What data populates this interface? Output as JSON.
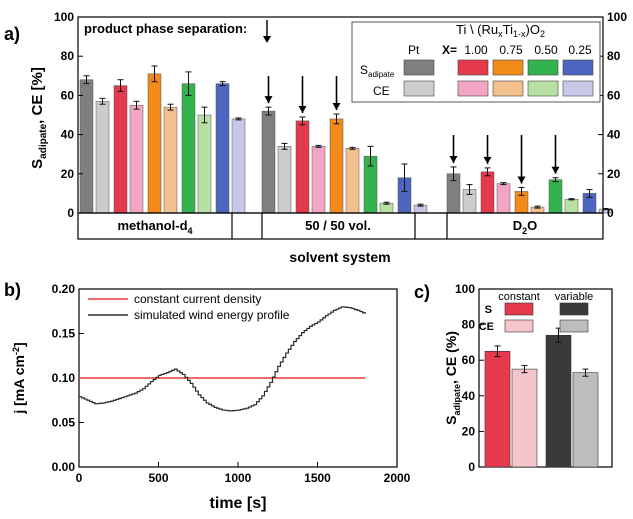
{
  "chart_data": [
    {
      "type": "bar",
      "panel_label": "a)",
      "ylabel_main": "S",
      "ylabel_sub": "adipate",
      "ylabel_rest": ", CE [%]",
      "ylim": [
        0,
        100
      ],
      "yticks": [
        "0",
        "20",
        "40",
        "60",
        "80",
        "100"
      ],
      "xlabel": "solvent system",
      "annotation": "product phase separation:",
      "groups": [
        {
          "label_main": "methanol-d",
          "label_sub": "4",
          "label_rest": ""
        },
        {
          "label_main": "50 / 50 vol.",
          "label_sub": "",
          "label_rest": ""
        },
        {
          "label_main": "D",
          "label_sub": "2",
          "label_rest": "O"
        }
      ],
      "legend": {
        "title_prefix": "Ti \\ (Ru",
        "title_x1": "x",
        "title_mid": "Ti",
        "title_x2": "1-x",
        "title_suffix": ")O",
        "title_two": "2",
        "header_pt": "Pt",
        "header_x": "X=",
        "x_values": [
          "1.00",
          "0.75",
          "0.50",
          "0.25"
        ],
        "row_s_main": "S",
        "row_s_sub": "adipate",
        "row_ce": "CE"
      },
      "series": [
        {
          "catalyst": "Pt",
          "S": [
            68,
            52,
            20
          ],
          "S_err": [
            2,
            2,
            3.5
          ],
          "CE": [
            57,
            34,
            12
          ],
          "CE_err": [
            1.5,
            1.5,
            2.5
          ]
        },
        {
          "catalyst": "1.00",
          "S": [
            65,
            47,
            21
          ],
          "S_err": [
            3,
            2,
            2
          ],
          "CE": [
            55,
            34,
            15
          ],
          "CE_err": [
            2,
            0.5,
            0.5
          ]
        },
        {
          "catalyst": "0.75",
          "S": [
            71,
            48,
            11
          ],
          "S_err": [
            4,
            2.5,
            2
          ],
          "CE": [
            54,
            33,
            3
          ],
          "CE_err": [
            1.5,
            0.5,
            0.5
          ]
        },
        {
          "catalyst": "0.50",
          "S": [
            66,
            29,
            17
          ],
          "S_err": [
            6,
            5,
            1
          ],
          "CE": [
            50,
            5,
            7
          ],
          "CE_err": [
            4,
            0.5,
            0.3
          ]
        },
        {
          "catalyst": "0.25",
          "S": [
            66,
            18,
            10
          ],
          "S_err": [
            1,
            7,
            2
          ],
          "CE": [
            48,
            4,
            2
          ],
          "CE_err": [
            0.5,
            0.5,
            0.3
          ]
        }
      ],
      "arrows": [
        [],
        [
          0,
          1,
          2
        ],
        [
          0,
          1,
          2,
          3
        ]
      ],
      "colors": {
        "S": [
          "#7f7f7f",
          "#e5394d",
          "#f28b1a",
          "#33b34d",
          "#4d66bf"
        ],
        "CE": [
          "#cccccc",
          "#f2a6c4",
          "#f2c08c",
          "#b8e0a3",
          "#c7c7e8"
        ]
      }
    },
    {
      "type": "line",
      "panel_label": "b)",
      "xlabel": "time [s]",
      "ylabel_main": "j [mA cm",
      "ylabel_sup": "-2",
      "ylabel_end": "]",
      "xlim": [
        0,
        2000
      ],
      "ylim": [
        0,
        0.2
      ],
      "xticks": [
        "0",
        "500",
        "1000",
        "1500",
        "2000"
      ],
      "yticks": [
        "0.00",
        "0.05",
        "0.10",
        "0.15",
        "0.20"
      ],
      "series": [
        {
          "name": "constant current density",
          "color": "#e83c3c",
          "x": [
            0,
            1800
          ],
          "y": [
            0.1,
            0.1
          ]
        },
        {
          "name": "simulated wind energy profile",
          "color": "#2b2b2b",
          "x": [
            0,
            50,
            100,
            150,
            200,
            250,
            300,
            350,
            400,
            450,
            500,
            550,
            600,
            650,
            700,
            750,
            800,
            850,
            900,
            950,
            1000,
            1050,
            1100,
            1150,
            1200,
            1250,
            1300,
            1350,
            1400,
            1450,
            1500,
            1550,
            1600,
            1650,
            1700,
            1750,
            1800
          ],
          "y": [
            0.079,
            0.075,
            0.071,
            0.072,
            0.074,
            0.077,
            0.08,
            0.083,
            0.088,
            0.096,
            0.103,
            0.106,
            0.11,
            0.104,
            0.094,
            0.081,
            0.072,
            0.067,
            0.064,
            0.063,
            0.064,
            0.066,
            0.07,
            0.08,
            0.095,
            0.113,
            0.128,
            0.141,
            0.151,
            0.158,
            0.163,
            0.17,
            0.176,
            0.18,
            0.179,
            0.176,
            0.172
          ]
        }
      ]
    },
    {
      "type": "bar",
      "panel_label": "c)",
      "ylabel_main": "S",
      "ylabel_sub": "adipate",
      "ylabel_rest": ", CE (%)",
      "ylim": [
        0,
        100
      ],
      "yticks": [
        "0",
        "20",
        "40",
        "60",
        "80",
        "100"
      ],
      "legend": {
        "col1": "constant",
        "col2": "variable",
        "row1": "S",
        "row2": "CE"
      },
      "series": [
        {
          "name": "S constant",
          "value": 65,
          "err": 3,
          "color": "#e5394d"
        },
        {
          "name": "CE constant",
          "value": 55,
          "err": 2,
          "color": "#f5c4cc"
        },
        {
          "name": "S variable",
          "value": 74,
          "err": 4,
          "color": "#3a3a3a"
        },
        {
          "name": "CE variable",
          "value": 53,
          "err": 2,
          "color": "#bdbdbd"
        }
      ]
    }
  ]
}
